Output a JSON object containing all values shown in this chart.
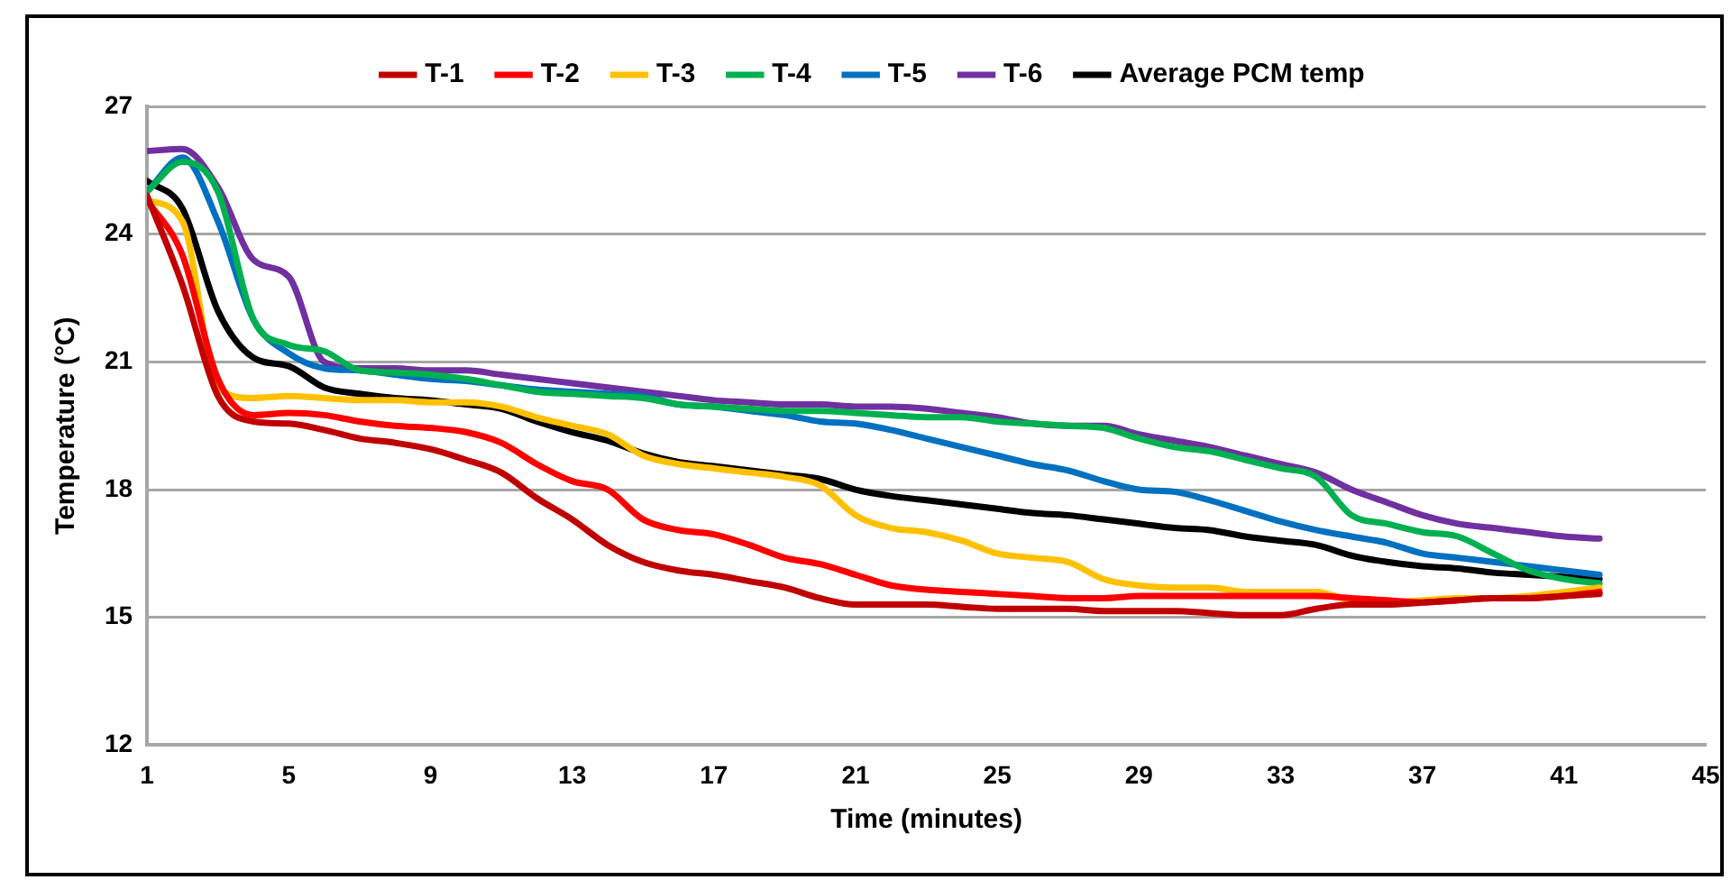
{
  "chart_data": {
    "type": "line",
    "xlabel": "Time (minutes)",
    "ylabel": "Temperature (°C)",
    "x": [
      1,
      2,
      3,
      4,
      5,
      6,
      7,
      8,
      9,
      10,
      11,
      12,
      13,
      14,
      15,
      16,
      17,
      18,
      19,
      20,
      21,
      22,
      23,
      24,
      25,
      26,
      27,
      28,
      29,
      30,
      31,
      32,
      33,
      34,
      35,
      36,
      37,
      38,
      39,
      40,
      41,
      42
    ],
    "series": [
      {
        "name": "T-1",
        "color": "#c00000",
        "values": [
          24.9,
          22.8,
          20.2,
          19.6,
          19.55,
          19.4,
          19.2,
          19.1,
          18.95,
          18.7,
          18.4,
          17.8,
          17.3,
          16.7,
          16.3,
          16.1,
          16.0,
          15.85,
          15.7,
          15.45,
          15.3,
          15.3,
          15.3,
          15.25,
          15.2,
          15.2,
          15.2,
          15.15,
          15.15,
          15.15,
          15.1,
          15.05,
          15.05,
          15.2,
          15.3,
          15.3,
          15.35,
          15.4,
          15.45,
          15.45,
          15.5,
          15.55
        ]
      },
      {
        "name": "T-2",
        "color": "#ff0000",
        "values": [
          24.8,
          23.5,
          20.6,
          19.75,
          19.8,
          19.75,
          19.6,
          19.5,
          19.45,
          19.35,
          19.1,
          18.6,
          18.2,
          18.0,
          17.3,
          17.05,
          16.95,
          16.7,
          16.4,
          16.25,
          16.0,
          15.75,
          15.65,
          15.6,
          15.55,
          15.5,
          15.45,
          15.45,
          15.5,
          15.5,
          15.5,
          15.5,
          15.5,
          15.5,
          15.45,
          15.4,
          15.35,
          15.4,
          15.45,
          15.45,
          15.5,
          15.6
        ]
      },
      {
        "name": "T-3",
        "color": "#ffc000",
        "values": [
          24.8,
          24.3,
          20.4,
          20.15,
          20.2,
          20.15,
          20.1,
          20.1,
          20.05,
          20.05,
          19.95,
          19.7,
          19.5,
          19.3,
          18.8,
          18.6,
          18.5,
          18.4,
          18.3,
          18.1,
          17.4,
          17.1,
          17.0,
          16.8,
          16.5,
          16.4,
          16.3,
          15.9,
          15.75,
          15.7,
          15.7,
          15.6,
          15.6,
          15.6,
          15.4,
          15.35,
          15.4,
          15.45,
          15.45,
          15.5,
          15.6,
          15.7
        ]
      },
      {
        "name": "T-4",
        "color": "#00b050",
        "values": [
          25.0,
          25.7,
          25.0,
          22.0,
          21.4,
          21.25,
          20.8,
          20.75,
          20.7,
          20.6,
          20.45,
          20.3,
          20.25,
          20.2,
          20.15,
          20.0,
          19.95,
          19.9,
          19.85,
          19.85,
          19.8,
          19.75,
          19.7,
          19.7,
          19.6,
          19.55,
          19.5,
          19.45,
          19.2,
          19.0,
          18.9,
          18.7,
          18.5,
          18.3,
          17.4,
          17.2,
          17.0,
          16.9,
          16.5,
          16.1,
          15.9,
          15.8
        ]
      },
      {
        "name": "T-5",
        "color": "#0070c0",
        "values": [
          25.0,
          25.8,
          24.3,
          22.0,
          21.2,
          20.85,
          20.8,
          20.7,
          20.6,
          20.55,
          20.45,
          20.35,
          20.3,
          20.25,
          20.2,
          20.0,
          19.95,
          19.85,
          19.75,
          19.6,
          19.55,
          19.4,
          19.2,
          19.0,
          18.8,
          18.6,
          18.45,
          18.2,
          18.0,
          17.95,
          17.75,
          17.5,
          17.25,
          17.05,
          16.9,
          16.75,
          16.5,
          16.4,
          16.3,
          16.2,
          16.1,
          16.0
        ]
      },
      {
        "name": "T-6",
        "color": "#7030a0",
        "values": [
          25.95,
          26.0,
          25.1,
          23.4,
          23.0,
          21.0,
          20.85,
          20.85,
          20.8,
          20.8,
          20.7,
          20.6,
          20.5,
          20.4,
          20.3,
          20.2,
          20.1,
          20.05,
          20.0,
          20.0,
          19.95,
          19.95,
          19.9,
          19.8,
          19.7,
          19.55,
          19.5,
          19.5,
          19.3,
          19.15,
          19.0,
          18.8,
          18.6,
          18.4,
          18.0,
          17.7,
          17.4,
          17.2,
          17.1,
          17.0,
          16.9,
          16.85
        ]
      },
      {
        "name": "Average PCM temp",
        "color": "#000000",
        "values": [
          25.25,
          24.6,
          22.2,
          21.1,
          20.9,
          20.4,
          20.25,
          20.15,
          20.1,
          20.0,
          19.9,
          19.6,
          19.35,
          19.15,
          18.85,
          18.65,
          18.55,
          18.45,
          18.35,
          18.25,
          18.0,
          17.85,
          17.75,
          17.65,
          17.55,
          17.45,
          17.4,
          17.3,
          17.2,
          17.1,
          17.05,
          16.9,
          16.8,
          16.7,
          16.45,
          16.3,
          16.2,
          16.15,
          16.05,
          16.0,
          15.95,
          15.9
        ]
      }
    ],
    "xlim": [
      1,
      45
    ],
    "xticks": [
      1,
      5,
      9,
      13,
      17,
      21,
      25,
      29,
      33,
      37,
      41,
      45
    ],
    "ylim": [
      12,
      27
    ],
    "yticks": [
      12,
      15,
      18,
      21,
      24,
      27
    ],
    "grid": "y",
    "legend": "top",
    "marker": "none",
    "line_style": "solid"
  }
}
